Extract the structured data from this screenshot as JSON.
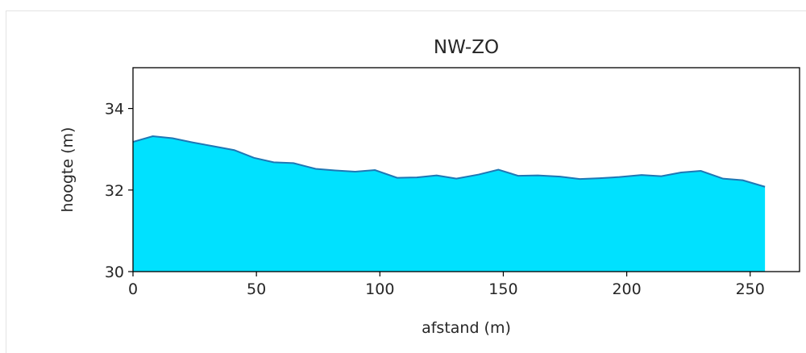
{
  "chart_data": {
    "type": "area",
    "title": "NW-ZO",
    "xlabel": "afstand (m)",
    "ylabel": "hoogte (m)",
    "xlim": [
      0,
      270
    ],
    "ylim": [
      30,
      35
    ],
    "xticks": [
      0,
      50,
      100,
      150,
      200,
      250
    ],
    "yticks": [
      30,
      32,
      34
    ],
    "grid": false,
    "colors": {
      "fill": "#00e1ff",
      "line": "#1f77b4",
      "axes": "#000000"
    },
    "series": [
      {
        "x": [
          0,
          8,
          16,
          24,
          32,
          41,
          49,
          57,
          65,
          74,
          82,
          90,
          98,
          107,
          115,
          123,
          131,
          140,
          148,
          156,
          164,
          173,
          181,
          189,
          197,
          206,
          214,
          222,
          230,
          239,
          247,
          256
        ],
        "y": [
          33.18,
          33.32,
          33.27,
          33.17,
          33.08,
          32.98,
          32.79,
          32.68,
          32.66,
          32.52,
          32.48,
          32.45,
          32.49,
          32.3,
          32.31,
          32.36,
          32.28,
          32.38,
          32.5,
          32.35,
          32.36,
          32.33,
          32.27,
          32.29,
          32.32,
          32.37,
          32.34,
          32.43,
          32.47,
          32.28,
          32.24,
          32.08
        ]
      }
    ]
  }
}
